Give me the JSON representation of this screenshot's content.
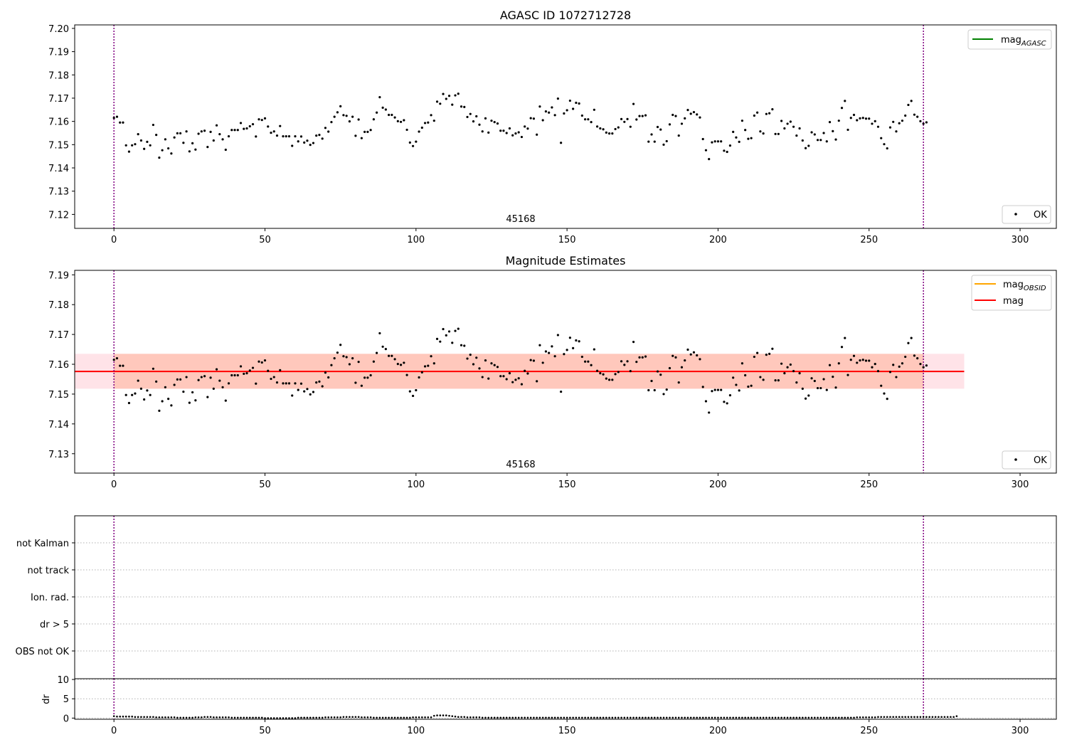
{
  "colors": {
    "points": "#000000",
    "agasc_line": "#008000",
    "obsid_line": "#ffa500",
    "mag_line": "#ff0000",
    "band_outer": "#ffc0cb",
    "band_inner": "#ffa07a",
    "vline": "#800080"
  },
  "chart_data": [
    {
      "type": "scatter",
      "title": "AGASC ID 1072712728",
      "annotation": "45168",
      "xlim": [
        -13,
        312
      ],
      "ylim": [
        7.114,
        7.2015
      ],
      "xticks": [
        0,
        50,
        100,
        150,
        200,
        250,
        300
      ],
      "yticks": [
        7.12,
        7.13,
        7.14,
        7.15,
        7.16,
        7.17,
        7.18,
        7.19,
        7.2
      ],
      "vlines": [
        0,
        268
      ],
      "legend_top": {
        "placement": "upper right",
        "label": "mag",
        "sub": "AGASC"
      },
      "legend_bottom": {
        "placement": "lower right",
        "label": "OK"
      },
      "series": [
        {
          "name": "OK",
          "x": "obs_index",
          "y": "mag_obs"
        }
      ]
    },
    {
      "type": "scatter",
      "title": "Magnitude Estimates",
      "annotation": "45168",
      "xlim": [
        -13,
        312
      ],
      "ylim": [
        7.1235,
        7.1915
      ],
      "xticks": [
        0,
        50,
        100,
        150,
        200,
        250,
        300
      ],
      "yticks": [
        7.13,
        7.14,
        7.15,
        7.16,
        7.17,
        7.18,
        7.19
      ],
      "vlines": [
        0,
        268
      ],
      "mag": 7.1576,
      "band_outer": [
        7.1518,
        7.1635,
        -13,
        281.5
      ],
      "band_inner": [
        7.1518,
        7.1635,
        0,
        268
      ],
      "legend_top": {
        "placement": "upper right",
        "items": [
          {
            "label": "mag",
            "sub": "OBSID"
          },
          {
            "label": "mag",
            "sub": ""
          }
        ]
      },
      "legend_bottom": {
        "placement": "lower right",
        "label": "OK"
      },
      "series": [
        {
          "name": "OK",
          "x": "obs_index",
          "y": "mag_obs"
        }
      ]
    },
    {
      "type": "scatter",
      "title": "",
      "categories": [
        "not Kalman",
        "not track",
        "Ion. rad.",
        "dr > 5",
        "OBS not OK"
      ],
      "xlim": [
        -13,
        312
      ],
      "vlines": [
        0,
        268
      ],
      "grid": "horizontal dotted"
    },
    {
      "type": "scatter",
      "title": "",
      "ylabel": "dr",
      "xlim": [
        -13,
        312
      ],
      "ylim": [
        -0.3,
        10.2
      ],
      "xticks": [
        0,
        50,
        100,
        150,
        200,
        250,
        300
      ],
      "yticks": [
        0,
        5,
        10
      ],
      "vlines": [
        0,
        268
      ],
      "dr_values": [
        0.5,
        0.4,
        0.4,
        0.4,
        0.4,
        0.4,
        0.4,
        0.3,
        0.3,
        0.3,
        0.3,
        0.3,
        0.3,
        0.3,
        0.2,
        0.2,
        0.2,
        0.2,
        0.2,
        0.2,
        0.2,
        0.1,
        0.1,
        0.1,
        0.1,
        0.1,
        0.1,
        0.2,
        0.2,
        0.2,
        0.3,
        0.3,
        0.3,
        0.2,
        0.2,
        0.2,
        0.2,
        0.2,
        0.2,
        0.1,
        0.1,
        0.1,
        0.1,
        0.1,
        0.1,
        0.1,
        0.1,
        0.1,
        0.1,
        0.1,
        0.0,
        0.0,
        0.0,
        0.0,
        0.0,
        0.0,
        0.0,
        0.0,
        0.0,
        0.0,
        0.0,
        0.1,
        0.1,
        0.1,
        0.1,
        0.1,
        0.1,
        0.1,
        0.1,
        0.1,
        0.2,
        0.2,
        0.2,
        0.2,
        0.2,
        0.2,
        0.3,
        0.3,
        0.3,
        0.3,
        0.3,
        0.3,
        0.2,
        0.2,
        0.2,
        0.2,
        0.1,
        0.1,
        0.1,
        0.1,
        0.1,
        0.1,
        0.1,
        0.1,
        0.1,
        0.1,
        0.1,
        0.1,
        0.1,
        0.2,
        0.2,
        0.2,
        0.2,
        0.2,
        0.2,
        0.2,
        0.6,
        0.7,
        0.7,
        0.7,
        0.7,
        0.6,
        0.5,
        0.4,
        0.3,
        0.3,
        0.3,
        0.2,
        0.2,
        0.2,
        0.2,
        0.2,
        0.1,
        0.1,
        0.1,
        0.1,
        0.1,
        0.1,
        0.1,
        0.1,
        0.1,
        0.1,
        0.1,
        0.1,
        0.1,
        0.1,
        0.1,
        0.1,
        0.1,
        0.1,
        0.1,
        0.1,
        0.1,
        0.1,
        0.1,
        0.1,
        0.1,
        0.1,
        0.1,
        0.1,
        0.1,
        0.1,
        0.1,
        0.1,
        0.1,
        0.1,
        0.1,
        0.1,
        0.1,
        0.1,
        0.1,
        0.1,
        0.1,
        0.1,
        0.1,
        0.1,
        0.1,
        0.1,
        0.1,
        0.1,
        0.1,
        0.1,
        0.1,
        0.1,
        0.1,
        0.1,
        0.1,
        0.1,
        0.1,
        0.1,
        0.1,
        0.1,
        0.1,
        0.1,
        0.1,
        0.1,
        0.1,
        0.1,
        0.1,
        0.1,
        0.1,
        0.1,
        0.1,
        0.1,
        0.1,
        0.1,
        0.1,
        0.1,
        0.1,
        0.1,
        0.1,
        0.1,
        0.1,
        0.1,
        0.1,
        0.1,
        0.1,
        0.1,
        0.1,
        0.1,
        0.1,
        0.1,
        0.1,
        0.1,
        0.1,
        0.1,
        0.1,
        0.1,
        0.1,
        0.1,
        0.1,
        0.1,
        0.1,
        0.1,
        0.1,
        0.1,
        0.1,
        0.1,
        0.1,
        0.1,
        0.1,
        0.1,
        0.1,
        0.1,
        0.1,
        0.1,
        0.1,
        0.1,
        0.1,
        0.1,
        0.1,
        0.1,
        0.1,
        0.1,
        0.1,
        0.1,
        0.2,
        0.2,
        0.2,
        0.2,
        0.2,
        0.2,
        0.2,
        0.3,
        0.3,
        0.3,
        0.3,
        0.3,
        0.3,
        0.3,
        0.3,
        0.3,
        0.3,
        0.3,
        0.3,
        0.3,
        0.3,
        0.3,
        0.3,
        0.3,
        0.3,
        0.3,
        0.3,
        0.3,
        0.3,
        0.3,
        0.3,
        0.3,
        0.3,
        0.5
      ]
    }
  ],
  "mag_obs": [
    7.1615,
    7.162,
    7.1595,
    7.1595,
    7.1497,
    7.147,
    7.1497,
    7.1502,
    7.1545,
    7.1518,
    7.1482,
    7.1512,
    7.1497,
    7.1585,
    7.1542,
    7.1444,
    7.1476,
    7.1523,
    7.1484,
    7.1462,
    7.1531,
    7.1549,
    7.1549,
    7.1508,
    7.1557,
    7.1471,
    7.1506,
    7.1479,
    7.1547,
    7.1557,
    7.156,
    7.149,
    7.1555,
    7.1518,
    7.1583,
    7.1545,
    7.1523,
    7.1478,
    7.1536,
    7.1563,
    7.1563,
    7.1563,
    7.1593,
    7.1568,
    7.157,
    7.1579,
    7.1588,
    7.1535,
    7.1609,
    7.1606,
    7.1613,
    7.1578,
    7.1551,
    7.1557,
    7.1539,
    7.158,
    7.1536,
    7.1536,
    7.1536,
    7.1495,
    7.1536,
    7.1514,
    7.1535,
    7.1509,
    7.1517,
    7.1499,
    7.1507,
    7.1539,
    7.1542,
    7.1526,
    7.1572,
    7.1556,
    7.1597,
    7.162,
    7.1639,
    7.1665,
    7.1627,
    7.1624,
    7.16,
    7.162,
    7.1538,
    7.1608,
    7.1528,
    7.1555,
    7.1555,
    7.1563,
    7.1609,
    7.1638,
    7.1704,
    7.1659,
    7.1651,
    7.1628,
    7.1628,
    7.1617,
    7.1601,
    7.1598,
    7.1605,
    7.1564,
    7.1509,
    7.1494,
    7.1513,
    7.1556,
    7.1573,
    7.1593,
    7.1595,
    7.1627,
    7.1603,
    7.1685,
    7.1676,
    7.1718,
    7.1697,
    7.171,
    7.1672,
    7.1712,
    7.1719,
    7.1664,
    7.1662,
    7.1619,
    7.1632,
    7.16,
    7.1622,
    7.1586,
    7.1557,
    7.1613,
    7.1552,
    7.1603,
    7.1597,
    7.1591,
    7.156,
    7.156,
    7.155,
    7.157,
    7.154,
    7.1548,
    7.1553,
    7.1533,
    7.1578,
    7.1569,
    7.1614,
    7.1612,
    7.1543,
    7.1664,
    7.1605,
    7.1643,
    7.1638,
    7.166,
    7.1627,
    7.1698,
    7.1508,
    7.1634,
    7.1648,
    7.1689,
    7.1654,
    7.168,
    7.1677,
    7.1625,
    7.1609,
    7.1609,
    7.1597,
    7.165,
    7.1578,
    7.157,
    7.1566,
    7.1552,
    7.1548,
    7.1548,
    7.1567,
    7.1574,
    7.161,
    7.1598,
    7.161,
    7.1577,
    7.1675,
    7.1608,
    7.1623,
    7.1623,
    7.1626,
    7.1513,
    7.1544,
    7.1513,
    7.1576,
    7.1565,
    7.15,
    7.1515,
    7.1587,
    7.1628,
    7.1623,
    7.1539,
    7.159,
    7.1613,
    7.1649,
    7.1633,
    7.164,
    7.163,
    7.1617,
    7.1524,
    7.1476,
    7.1438,
    7.151,
    7.1514,
    7.1514,
    7.1514,
    7.1474,
    7.1469,
    7.1496,
    7.1555,
    7.1531,
    7.1512,
    7.1603,
    7.1563,
    7.1525,
    7.1528,
    7.1625,
    7.1638,
    7.1557,
    7.1548,
    7.1632,
    7.1635,
    7.1652,
    7.1546,
    7.1546,
    7.1602,
    7.157,
    7.159,
    7.1599,
    7.1577,
    7.1539,
    7.157,
    7.1518,
    7.1485,
    7.1495,
    7.1553,
    7.1544,
    7.152,
    7.152,
    7.155,
    7.1514,
    7.1597,
    7.1558,
    7.1522,
    7.1603,
    7.1658,
    7.1688,
    7.1564,
    7.1615,
    7.1628,
    7.1605,
    7.1613,
    7.1615,
    7.1612,
    7.1612,
    7.159,
    7.1601,
    7.1577,
    7.1528,
    7.1502,
    7.1484,
    7.1574,
    7.1598,
    7.1557,
    7.1592,
    7.1603,
    7.1625,
    7.1671,
    7.1688,
    7.1629,
    7.162,
    7.1601,
    7.159,
    7.1596
  ]
}
